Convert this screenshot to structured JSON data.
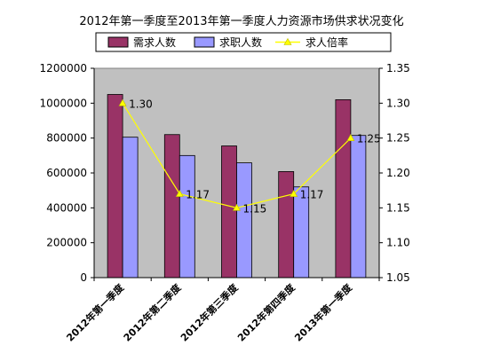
{
  "chart_data": {
    "type": "bar",
    "title": "2012年第一季度至2013年第一季度人力资源市场供求状况变化",
    "categories": [
      "2012年第一季度",
      "2012年第二季度",
      "2012年第三季度",
      "2012年第四季度",
      "2013年第一季度"
    ],
    "series": [
      {
        "name": "需求人数",
        "type": "bar",
        "axis": "left",
        "color": "#993366",
        "values": [
          1050000,
          820000,
          755000,
          608000,
          1020000
        ]
      },
      {
        "name": "求职人数",
        "type": "bar",
        "axis": "left",
        "color": "#9999ff",
        "values": [
          805000,
          700000,
          658000,
          520000,
          815000
        ]
      },
      {
        "name": "求人倍率",
        "type": "line",
        "axis": "right",
        "color": "#ffff00",
        "values": [
          1.3,
          1.17,
          1.15,
          1.17,
          1.25
        ],
        "labels": [
          "1.30",
          "1.17",
          "1.15",
          "1.17",
          "1.25"
        ]
      }
    ],
    "y_left": {
      "min": 0,
      "max": 1200000,
      "ticks": [
        0,
        200000,
        400000,
        600000,
        800000,
        1000000,
        1200000
      ],
      "tick_labels": [
        "0",
        "200000",
        "400000",
        "600000",
        "800000",
        "1000000",
        "1200000"
      ]
    },
    "y_right": {
      "min": 1.05,
      "max": 1.35,
      "ticks": [
        1.05,
        1.1,
        1.15,
        1.2,
        1.25,
        1.3,
        1.35
      ],
      "tick_labels": [
        "1.05",
        "1.10",
        "1.15",
        "1.20",
        "1.25",
        "1.30",
        "1.35"
      ]
    },
    "xlabel": "",
    "ylabel": "",
    "grid": false,
    "legend": "top",
    "plot_background": "#c0c0c0"
  }
}
